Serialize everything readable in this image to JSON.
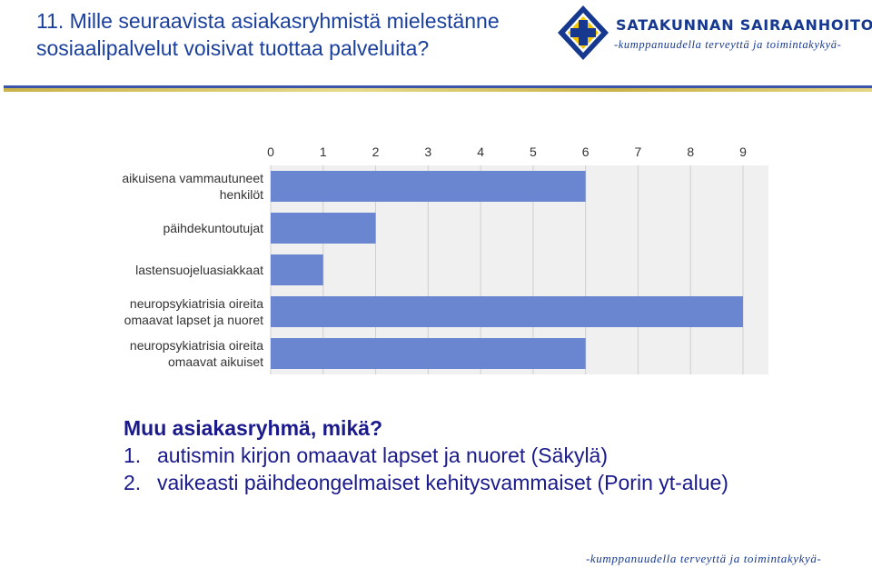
{
  "slide": {
    "title_line1": "11. Mille seuraavista asiakasryhmistä mielestänne",
    "title_line2": "sosiaalipalvelut voisivat tuottaa palveluita?"
  },
  "logo": {
    "name": "SATAKUNNAN SAIRAANHOITOPIIRI",
    "slogan": "-kumppanuudella terveyttä ja toimintakykyä-",
    "colors": {
      "blue": "#16398f",
      "gold": "#f2c500"
    }
  },
  "chart_data": {
    "type": "bar",
    "orientation": "horizontal",
    "categories": [
      [
        "aikuisena vammautuneet",
        "henkilöt"
      ],
      [
        "päihdekuntoutujat"
      ],
      [
        "lastensuojeluasiakkaat"
      ],
      [
        "neuropsykiatrisia oireita",
        "omaavat lapset ja nuoret"
      ],
      [
        "neuropsykiatrisia oireita",
        "omaavat aikuiset"
      ]
    ],
    "values": [
      6,
      2,
      1,
      9,
      6
    ],
    "x_ticks": [
      "0",
      "1",
      "2",
      "3",
      "4",
      "5",
      "6",
      "7",
      "8",
      "9"
    ],
    "xlim": [
      0,
      9
    ],
    "grid": true,
    "bar_color": "#6b86d0"
  },
  "notes": {
    "heading": "Muu asiakasryhmä, mikä?",
    "items": [
      {
        "num": "1.",
        "text": "autismin kirjon omaavat lapset ja nuoret (Säkylä)"
      },
      {
        "num": "2.",
        "text": "vaikeasti päihdeongelmaiset kehitysvammaiset (Porin yt-alue)"
      }
    ]
  },
  "footer": {
    "slogan": "-kumppanuudella terveyttä ja toimintakykyä-"
  }
}
